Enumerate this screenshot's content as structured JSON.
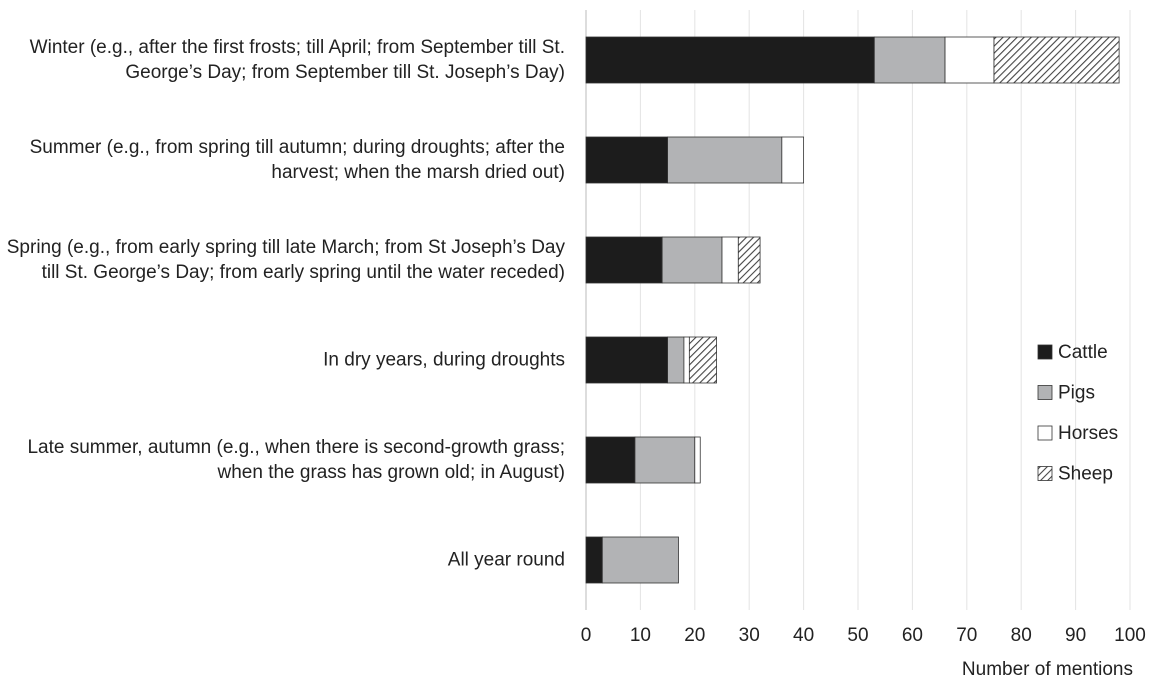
{
  "chart_data": {
    "type": "stacked-bar-horizontal",
    "x_label": "Number of mentions",
    "categories": [
      "Winter (e.g., after the first frosts; till April; from September till St. George’s Day; from September till St. Joseph’s Day)",
      "Summer (e.g., from spring till autumn; during droughts; after the harvest; when the marsh dried out)",
      "Spring (e.g., from early spring till late March; from St Joseph’s Day till St. George’s Day; from early spring until the water receded)",
      "In dry years, during droughts",
      "Late summer, autumn (e.g., when there is second-growth grass; when the grass has grown old; in August)",
      "All year round"
    ],
    "series": [
      {
        "name": "Cattle",
        "color": "#1c1c1c",
        "values": [
          53,
          15,
          14,
          15,
          9,
          3
        ]
      },
      {
        "name": "Pigs",
        "color": "#b2b3b5",
        "values": [
          13,
          21,
          11,
          3,
          11,
          14
        ]
      },
      {
        "name": "Horses",
        "color": "#ffffff",
        "values": [
          9,
          4,
          3,
          1,
          1,
          0
        ]
      },
      {
        "name": "Sheep",
        "color": "#444444",
        "hatch": true,
        "values": [
          23,
          0,
          4,
          5,
          0,
          0
        ]
      }
    ],
    "xlim": [
      0,
      100
    ],
    "xticks": [
      0,
      10,
      20,
      30,
      40,
      50,
      60,
      70,
      80,
      90,
      100
    ],
    "grid": true,
    "legend": "right"
  }
}
